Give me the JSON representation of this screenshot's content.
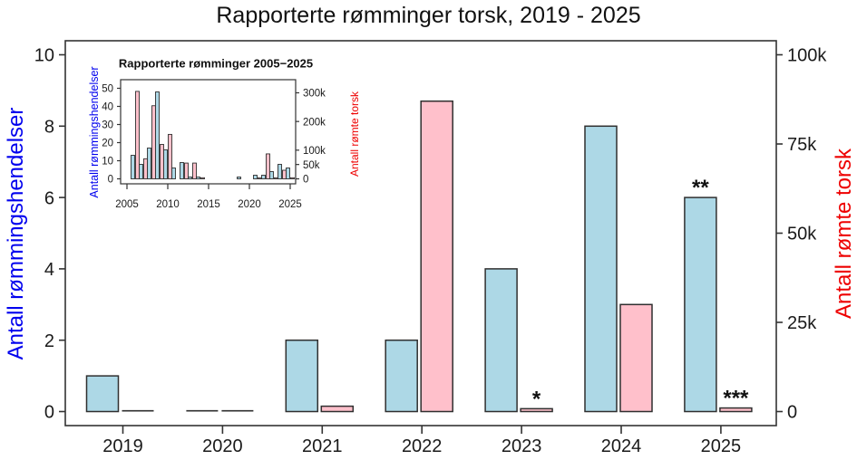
{
  "title": "Rapporterte rømminger torsk, 2019 - 2025",
  "colors": {
    "events_fill": "#ADD8E6",
    "fish_fill": "#FFC0CB",
    "bar_border": "#2F2F2F",
    "axis": "#333333",
    "text": "#1A1A1A",
    "left_label": "#0000EE",
    "right_label": "#EE0000"
  },
  "chart_data": [
    {
      "id": "main",
      "type": "bar",
      "title": "Rapporterte rømminger torsk, 2019 - 2025",
      "categories": [
        "2019",
        "2020",
        "2021",
        "2022",
        "2023",
        "2024",
        "2025"
      ],
      "x_ticks": [
        "2019",
        "2020",
        "2021",
        "2022",
        "2023",
        "2024",
        "2025"
      ],
      "series": [
        {
          "key": "events",
          "name": "Antall rømmingshendelser",
          "axis": "left",
          "values": [
            1,
            0,
            2,
            2,
            4,
            8,
            6
          ]
        },
        {
          "key": "fish",
          "name": "Antall rømte torsk",
          "axis": "right",
          "values": [
            0,
            0,
            1500,
            87000,
            800,
            30000,
            1000
          ]
        }
      ],
      "left_axis": {
        "label": "Antall rømmingshendelser",
        "ticks": [
          "0",
          "2",
          "4",
          "6",
          "8",
          "10"
        ],
        "tick_values": [
          0,
          2,
          4,
          6,
          8,
          10
        ],
        "range": [
          0,
          10
        ]
      },
      "right_axis": {
        "label": "Antall rømte torsk",
        "ticks": [
          "0",
          "25k",
          "50k",
          "75k",
          "100k"
        ],
        "tick_values": [
          0,
          25000,
          50000,
          75000,
          100000
        ],
        "range": [
          0,
          100000
        ]
      },
      "annotations": [
        {
          "text": "*",
          "category": "2023",
          "series": 1
        },
        {
          "text": "**",
          "category": "2025",
          "series": 0
        },
        {
          "text": "***",
          "category": "2025",
          "series": 1
        }
      ],
      "legend": "none",
      "grid": false
    },
    {
      "id": "inset",
      "type": "bar",
      "title": "Rapporterte rømminger 2005−2025",
      "categories": [
        "2005",
        "2006",
        "2007",
        "2008",
        "2009",
        "2010",
        "2011",
        "2012",
        "2013",
        "2014",
        "2015",
        "2016",
        "2017",
        "2018",
        "2019",
        "2020",
        "2021",
        "2022",
        "2023",
        "2024",
        "2025"
      ],
      "x_ticks": [
        "2005",
        "2010",
        "2015",
        "2020",
        "2025"
      ],
      "series": [
        {
          "key": "events",
          "name": "Antall rømmingshendelser",
          "axis": "left",
          "values": [
            0,
            13,
            8,
            17,
            48,
            16,
            6,
            9,
            1,
            1,
            0,
            0,
            0,
            0,
            1,
            0,
            2,
            2,
            4,
            8,
            6
          ]
        },
        {
          "key": "fish",
          "name": "Antall rømte torsk",
          "axis": "right",
          "values": [
            0,
            305000,
            70000,
            255000,
            120000,
            155000,
            0,
            55000,
            55000,
            2000,
            0,
            0,
            0,
            0,
            0,
            0,
            1500,
            87000,
            800,
            30000,
            1000
          ]
        }
      ],
      "left_axis": {
        "label": "Antall rømmingshendelser",
        "ticks": [
          "0",
          "10",
          "20",
          "30",
          "40",
          "50"
        ],
        "tick_values": [
          0,
          10,
          20,
          30,
          40,
          50
        ],
        "range": [
          0,
          50
        ]
      },
      "right_axis": {
        "label": "Antall rømte torsk",
        "ticks": [
          "0",
          "50k",
          "100k",
          "200k",
          "300k"
        ],
        "tick_values": [
          0,
          50000,
          100000,
          200000,
          300000
        ],
        "range": [
          0,
          300000
        ]
      },
      "legend": "none",
      "grid": false
    }
  ]
}
